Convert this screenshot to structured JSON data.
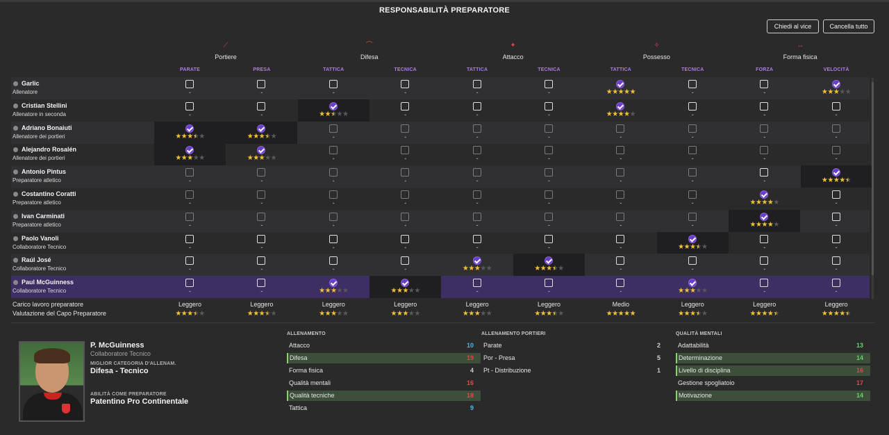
{
  "title": "RESPONSABILITÀ PREPARATORE",
  "buttons": {
    "ask_vice": "Chiedi al vice",
    "clear_all": "Cancella tutto"
  },
  "groups": [
    {
      "label": "Portiere",
      "icon": "goalkeeper-glove-icon"
    },
    {
      "label": "Difesa",
      "icon": "defence-slide-icon"
    },
    {
      "label": "Attacco",
      "icon": "attack-run-icon"
    },
    {
      "label": "Possesso",
      "icon": "possession-icon"
    },
    {
      "label": "Forma fisica",
      "icon": "fitness-dumbbell-icon"
    }
  ],
  "columns": [
    "PARATE",
    "PRESA",
    "TATTICA",
    "TECNICA",
    "TATTICA",
    "TECNICA",
    "TATTICA",
    "TECNICA",
    "FORZA",
    "VELOCITÀ"
  ],
  "rows": [
    {
      "name": "Garlic",
      "role": "Allenatore",
      "cells": [
        {
          "s": "off"
        },
        {
          "s": "off"
        },
        {
          "s": "off"
        },
        {
          "s": "off"
        },
        {
          "s": "off"
        },
        {
          "s": "off"
        },
        {
          "s": "on",
          "r": 5
        },
        {
          "s": "off"
        },
        {
          "s": "off"
        },
        {
          "s": "on",
          "r": 3
        }
      ]
    },
    {
      "name": "Cristian Stellini",
      "role": "Allenatore in seconda",
      "cells": [
        {
          "s": "off"
        },
        {
          "s": "off"
        },
        {
          "s": "on",
          "r": 2.5,
          "hl": true
        },
        {
          "s": "off"
        },
        {
          "s": "off"
        },
        {
          "s": "off"
        },
        {
          "s": "on",
          "r": 4
        },
        {
          "s": "off"
        },
        {
          "s": "off"
        },
        {
          "s": "off"
        }
      ]
    },
    {
      "name": "Adriano Bonaiuti",
      "role": "Allenatore dei portieri",
      "cells": [
        {
          "s": "on",
          "r": 3.5,
          "hl": true
        },
        {
          "s": "on",
          "r": 3.5,
          "hl": true
        },
        {
          "s": "dim"
        },
        {
          "s": "dim"
        },
        {
          "s": "dim"
        },
        {
          "s": "dim"
        },
        {
          "s": "dim"
        },
        {
          "s": "dim"
        },
        {
          "s": "dim"
        },
        {
          "s": "dim"
        }
      ]
    },
    {
      "name": "Alejandro Rosalén",
      "role": "Allenatore dei portieri",
      "cells": [
        {
          "s": "on",
          "r": 3,
          "hl": true
        },
        {
          "s": "on",
          "r": 3
        },
        {
          "s": "dim"
        },
        {
          "s": "dim"
        },
        {
          "s": "dim"
        },
        {
          "s": "dim"
        },
        {
          "s": "dim"
        },
        {
          "s": "dim"
        },
        {
          "s": "dim"
        },
        {
          "s": "dim"
        }
      ]
    },
    {
      "name": "Antonio Pintus",
      "role": "Preparatore atletico",
      "cells": [
        {
          "s": "dim"
        },
        {
          "s": "dim"
        },
        {
          "s": "dim"
        },
        {
          "s": "dim"
        },
        {
          "s": "dim"
        },
        {
          "s": "dim"
        },
        {
          "s": "dim"
        },
        {
          "s": "dim"
        },
        {
          "s": "off"
        },
        {
          "s": "on",
          "r": 4.5,
          "hl": true
        }
      ]
    },
    {
      "name": "Costantino Coratti",
      "role": "Preparatore atletico",
      "cells": [
        {
          "s": "dim"
        },
        {
          "s": "dim"
        },
        {
          "s": "dim"
        },
        {
          "s": "dim"
        },
        {
          "s": "dim"
        },
        {
          "s": "dim"
        },
        {
          "s": "dim"
        },
        {
          "s": "dim"
        },
        {
          "s": "on",
          "r": 4
        },
        {
          "s": "off"
        }
      ]
    },
    {
      "name": "Ivan Carminati",
      "role": "Preparatore atletico",
      "cells": [
        {
          "s": "dim"
        },
        {
          "s": "dim"
        },
        {
          "s": "dim"
        },
        {
          "s": "dim"
        },
        {
          "s": "dim"
        },
        {
          "s": "dim"
        },
        {
          "s": "dim"
        },
        {
          "s": "dim"
        },
        {
          "s": "on",
          "r": 4,
          "hl": true
        },
        {
          "s": "off"
        }
      ]
    },
    {
      "name": "Paolo Vanoli",
      "role": "Collaboratore Tecnico",
      "cells": [
        {
          "s": "off"
        },
        {
          "s": "off"
        },
        {
          "s": "off"
        },
        {
          "s": "off"
        },
        {
          "s": "off"
        },
        {
          "s": "off"
        },
        {
          "s": "off"
        },
        {
          "s": "on",
          "r": 3.5,
          "hl": true
        },
        {
          "s": "off"
        },
        {
          "s": "off"
        }
      ]
    },
    {
      "name": "Raúl José",
      "role": "Collaboratore Tecnico",
      "cells": [
        {
          "s": "off"
        },
        {
          "s": "off"
        },
        {
          "s": "off"
        },
        {
          "s": "off"
        },
        {
          "s": "on",
          "r": 3
        },
        {
          "s": "on",
          "r": 3.5,
          "hl": true
        },
        {
          "s": "off"
        },
        {
          "s": "off"
        },
        {
          "s": "off"
        },
        {
          "s": "off"
        }
      ]
    },
    {
      "name": "Paul McGuinness",
      "role": "Collaboratore Tecnico",
      "cells": [
        {
          "s": "off"
        },
        {
          "s": "off"
        },
        {
          "s": "on",
          "r": 3
        },
        {
          "s": "on",
          "r": 3,
          "hl": true
        },
        {
          "s": "off"
        },
        {
          "s": "off"
        },
        {
          "s": "off"
        },
        {
          "s": "on",
          "r": 3
        },
        {
          "s": "off"
        },
        {
          "s": "off"
        }
      ]
    }
  ],
  "workload": {
    "label": "Carico lavoro preparatore",
    "values": [
      "Leggero",
      "Leggero",
      "Leggero",
      "Leggero",
      "Leggero",
      "Leggero",
      "Medio",
      "Leggero",
      "Leggero",
      "Leggero"
    ]
  },
  "head_rating": {
    "label": "Valutazione del Capo Preparatore",
    "values": [
      3.5,
      3.5,
      3,
      3,
      3,
      3.5,
      5,
      3.5,
      4.5,
      4.5
    ]
  },
  "profile": {
    "name": "P. McGuinness",
    "role": "Collaboratore Tecnico",
    "best_cat_caption": "MIGLIOR CATEGORIA D'ALLENAM.",
    "best_cat": "Difesa - Tecnico",
    "ability_caption": "ABILITÀ COME PREPARATORE",
    "ability": "Patentino Pro Continentale"
  },
  "attributes": {
    "training": {
      "title": "ALLENAMENTO",
      "items": [
        {
          "label": "Attacco",
          "value": "10",
          "color": "#4ab8e8"
        },
        {
          "label": "Difesa",
          "value": "19",
          "color": "#e04848",
          "hl": true
        },
        {
          "label": "Forma fisica",
          "value": "4",
          "color": "#cfcfcf"
        },
        {
          "label": "Qualità mentali",
          "value": "16",
          "color": "#e04848"
        },
        {
          "label": "Qualità tecniche",
          "value": "18",
          "color": "#e04848",
          "hl": true
        },
        {
          "label": "Tattica",
          "value": "9",
          "color": "#4ab8e8"
        }
      ]
    },
    "goalkeeping": {
      "title": "ALLENAMENTO PORTIERI",
      "items": [
        {
          "label": "Parate",
          "value": "2",
          "color": "#cfcfcf"
        },
        {
          "label": "Por - Presa",
          "value": "5",
          "color": "#cfcfcf"
        },
        {
          "label": "Pt - Distribuzione",
          "value": "1",
          "color": "#cfcfcf"
        }
      ]
    },
    "mental": {
      "title": "QUALITÀ MENTALI",
      "items": [
        {
          "label": "Adattabilità",
          "value": "13",
          "color": "#6ccf6a"
        },
        {
          "label": "Determinazione",
          "value": "14",
          "color": "#6ccf6a",
          "hl": true
        },
        {
          "label": "Livello di disciplina",
          "value": "16",
          "color": "#e04848",
          "hl": true
        },
        {
          "label": "Gestione spogliatoio",
          "value": "17",
          "color": "#e04848"
        },
        {
          "label": "Motivazione",
          "value": "14",
          "color": "#6ccf6a",
          "hl": true
        }
      ]
    }
  }
}
